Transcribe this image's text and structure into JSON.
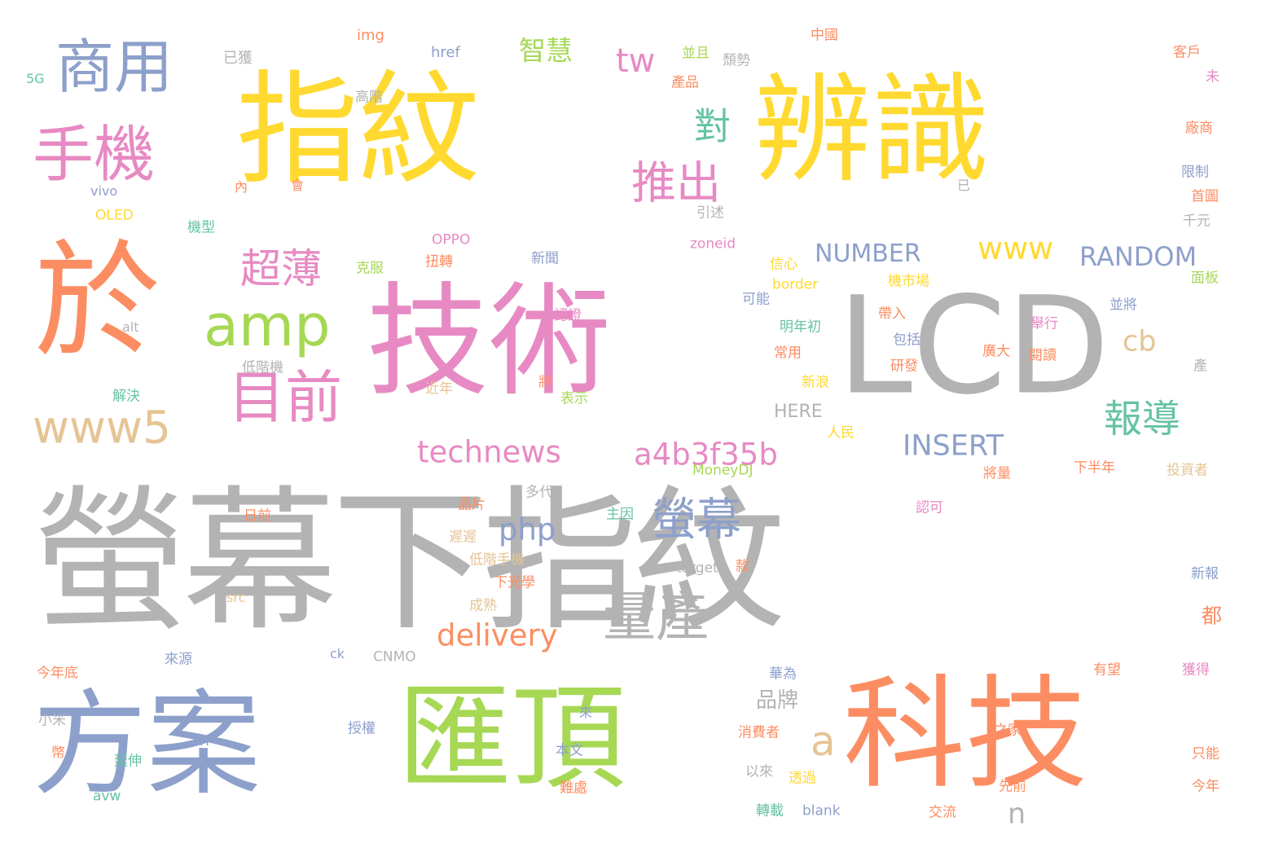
{
  "palette": {
    "yellow": "#ffd92f",
    "gray": "#b3b3b3",
    "orange": "#fc8d62",
    "pink": "#e78ac3",
    "green": "#a6d854",
    "blue": "#8da0cb",
    "teal": "#66c2a5",
    "tan": "#e5c494"
  },
  "words": [
    {
      "text": "指紋"
    },
    {
      "text": "辨識"
    },
    {
      "text": "螢幕下指紋"
    },
    {
      "text": "技術"
    },
    {
      "text": "LCD"
    },
    {
      "text": "方案"
    },
    {
      "text": "匯頂"
    },
    {
      "text": "科技"
    },
    {
      "text": "於"
    },
    {
      "text": "商用"
    },
    {
      "text": "手機"
    },
    {
      "text": "amp"
    },
    {
      "text": "目前"
    },
    {
      "text": "www5"
    },
    {
      "text": "對"
    },
    {
      "text": "推出"
    },
    {
      "text": "超薄"
    },
    {
      "text": "tw"
    },
    {
      "text": "智慧"
    },
    {
      "text": "www"
    },
    {
      "text": "NUMBER"
    },
    {
      "text": "RANDOM"
    },
    {
      "text": "cb"
    },
    {
      "text": "報導"
    },
    {
      "text": "INSERT"
    },
    {
      "text": "technews"
    },
    {
      "text": "a4b3f35b"
    },
    {
      "text": "螢幕"
    },
    {
      "text": "php"
    },
    {
      "text": "量產"
    },
    {
      "text": "delivery"
    },
    {
      "text": "a"
    },
    {
      "text": "n"
    },
    {
      "text": "品牌"
    },
    {
      "text": "都"
    },
    {
      "text": "img"
    },
    {
      "text": "href"
    },
    {
      "text": "已獲"
    },
    {
      "text": "5G"
    },
    {
      "text": "高階"
    },
    {
      "text": "並且"
    },
    {
      "text": "產品"
    },
    {
      "text": "頹勢"
    },
    {
      "text": "中國"
    },
    {
      "text": "客戶"
    },
    {
      "text": "未"
    },
    {
      "text": "廠商"
    },
    {
      "text": "vivo"
    },
    {
      "text": "內"
    },
    {
      "text": "會"
    },
    {
      "text": "已"
    },
    {
      "text": "限制"
    },
    {
      "text": "OLED"
    },
    {
      "text": "首圖"
    },
    {
      "text": "引述"
    },
    {
      "text": "千元"
    },
    {
      "text": "機型"
    },
    {
      "text": "OPPO"
    },
    {
      "text": "zoneid"
    },
    {
      "text": "扭轉"
    },
    {
      "text": "新聞"
    },
    {
      "text": "信心"
    },
    {
      "text": "克服"
    },
    {
      "text": "border"
    },
    {
      "text": "機市場"
    },
    {
      "text": "面板"
    },
    {
      "text": "認證"
    },
    {
      "text": "可能"
    },
    {
      "text": "並將"
    },
    {
      "text": "alt"
    },
    {
      "text": "帶入"
    },
    {
      "text": "明年初"
    },
    {
      "text": "舉行"
    },
    {
      "text": "包括"
    },
    {
      "text": "常用"
    },
    {
      "text": "廣大"
    },
    {
      "text": "閱讀"
    },
    {
      "text": "研發"
    },
    {
      "text": "低階機"
    },
    {
      "text": "產"
    },
    {
      "text": "解決"
    },
    {
      "text": "將"
    },
    {
      "text": "近年"
    },
    {
      "text": "新浪"
    },
    {
      "text": "表示"
    },
    {
      "text": "HERE"
    },
    {
      "text": "人民"
    },
    {
      "text": "MoneyDJ"
    },
    {
      "text": "將量"
    },
    {
      "text": "下半年"
    },
    {
      "text": "投資者"
    },
    {
      "text": "多代"
    },
    {
      "text": "晶片"
    },
    {
      "text": "日前"
    },
    {
      "text": "主因"
    },
    {
      "text": "認可"
    },
    {
      "text": "遲遲"
    },
    {
      "text": "低階手機"
    },
    {
      "text": "target"
    },
    {
      "text": "款"
    },
    {
      "text": "新報"
    },
    {
      "text": "下光學"
    },
    {
      "text": "src"
    },
    {
      "text": "成熟"
    },
    {
      "text": "來源"
    },
    {
      "text": "ck"
    },
    {
      "text": "CNMO"
    },
    {
      "text": "今年底"
    },
    {
      "text": "華為"
    },
    {
      "text": "有望"
    },
    {
      "text": "獲得"
    },
    {
      "text": "小米"
    },
    {
      "text": "來"
    },
    {
      "text": "授權"
    },
    {
      "text": "消費者"
    },
    {
      "text": "之家"
    },
    {
      "text": "IT"
    },
    {
      "text": "幣"
    },
    {
      "text": "延伸"
    },
    {
      "text": "本文"
    },
    {
      "text": "以來"
    },
    {
      "text": "透過"
    },
    {
      "text": "只能"
    },
    {
      "text": "avw"
    },
    {
      "text": "難處"
    },
    {
      "text": "先前"
    },
    {
      "text": "今年"
    },
    {
      "text": "轉載"
    },
    {
      "text": "blank"
    },
    {
      "text": "交流"
    }
  ]
}
